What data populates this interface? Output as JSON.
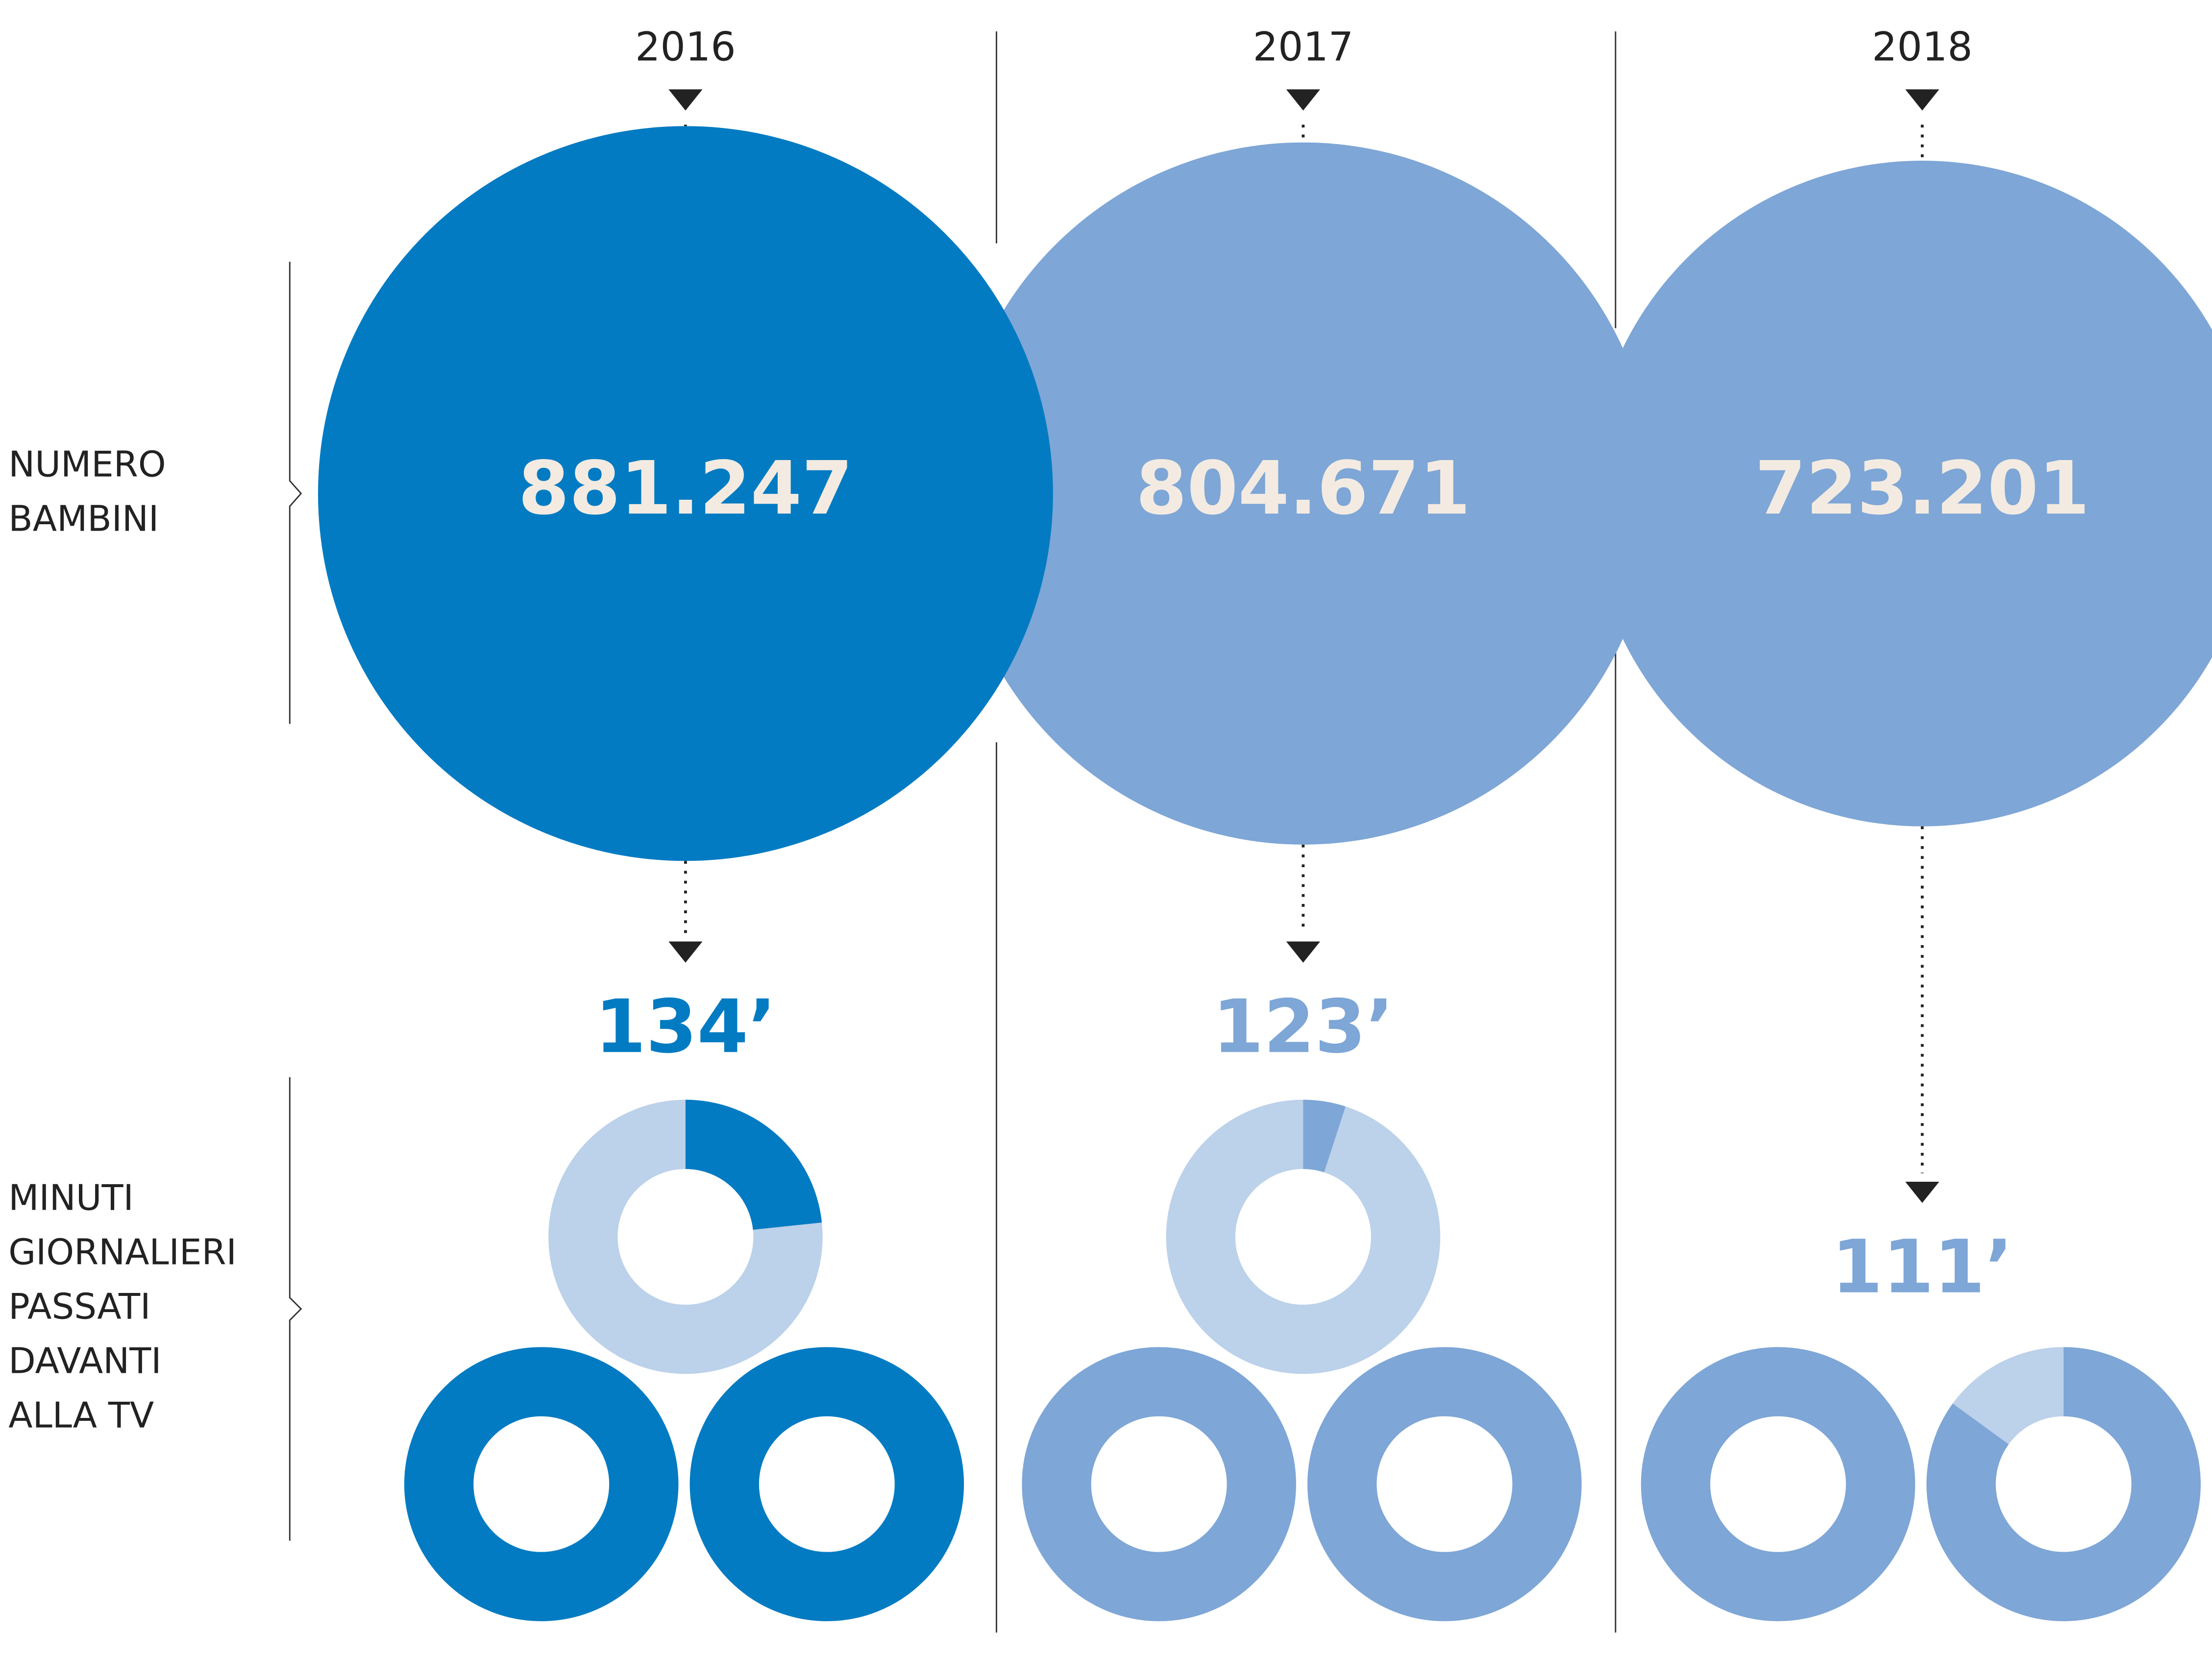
{
  "chart_data": {
    "type": "bubble-donut",
    "categories": [
      "2016",
      "2017",
      "2018"
    ],
    "row_labels": [
      [
        "NUMERO",
        "BAMBINI"
      ],
      [
        "MINUTI",
        "GIORNALIERI",
        "PASSATI",
        "DAVANTI",
        "ALLA TV"
      ]
    ],
    "children": {
      "values": [
        881247,
        804671,
        723201
      ],
      "value_labels": [
        "881.247",
        "804.671",
        "723.201"
      ]
    },
    "minutes": {
      "values": [
        134,
        123,
        111
      ],
      "value_labels": [
        "134’",
        "123’",
        "111’"
      ]
    },
    "colors": [
      "#037bc2",
      "#7ea6d6",
      "#7ea6d6"
    ],
    "light_color": "#bcd1ea"
  }
}
